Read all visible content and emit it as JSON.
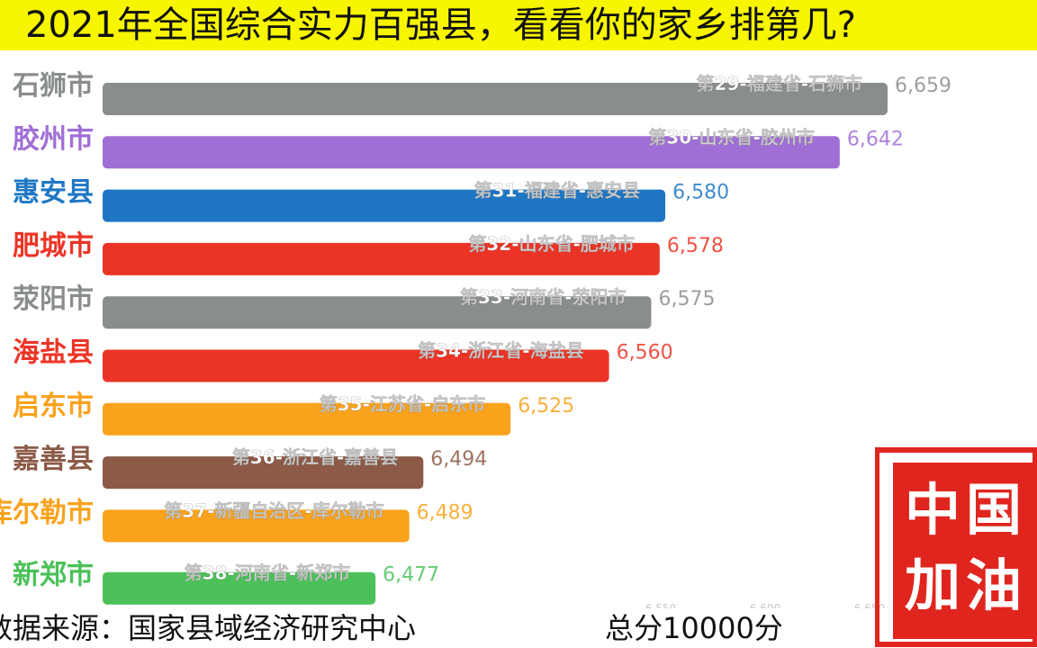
{
  "title": "2021年全国综合实力百强县，看看你的家乡排第几?",
  "footer": {
    "source": "数据来源：国家县域经济研究中心",
    "total": "总分10000分"
  },
  "stamp": {
    "text": "中国加油",
    "color": "#e0251f"
  },
  "chart_data": {
    "type": "bar",
    "orientation": "horizontal",
    "title": "2021年全国综合实力百强县，看看你的家乡排第几?",
    "categories": [
      "石狮市",
      "胶州市",
      "惠安县",
      "肥城市",
      "荥阳市",
      "海盐县",
      "启东市",
      "嘉善县",
      "库尔勒市",
      "新郑市"
    ],
    "labels": [
      "第29-福建省-石狮市",
      "第30-山东省-胶州市",
      "第31-福建省-惠安县",
      "第32-山东省-肥城市",
      "第33-河南省-荥阳市",
      "第34-浙江省-海盐县",
      "第35-江苏省-启东市",
      "第36-浙江省-嘉善县",
      "第37-新疆自治区-库尔勒市",
      "第38-河南省-新郑市"
    ],
    "values": [
      6659,
      6642,
      6580,
      6578,
      6575,
      6560,
      6525,
      6494,
      6489,
      6477
    ],
    "value_labels": [
      "6,659",
      "6,642",
      "6,580",
      "6,578",
      "6,575",
      "6,560",
      "6,525",
      "6,494",
      "6,489",
      "6,477"
    ],
    "colors": [
      "#8a8d8e",
      "#a06fd6",
      "#1f77c4",
      "#ec3426",
      "#8a8d8e",
      "#ec3426",
      "#f9a21c",
      "#8c5a47",
      "#f9a21c",
      "#4cc15a"
    ],
    "xlim": [
      6380,
      6670
    ],
    "xticks": [
      "6,550",
      "6,600",
      "6,650"
    ],
    "xlabel": "",
    "ylabel": ""
  }
}
